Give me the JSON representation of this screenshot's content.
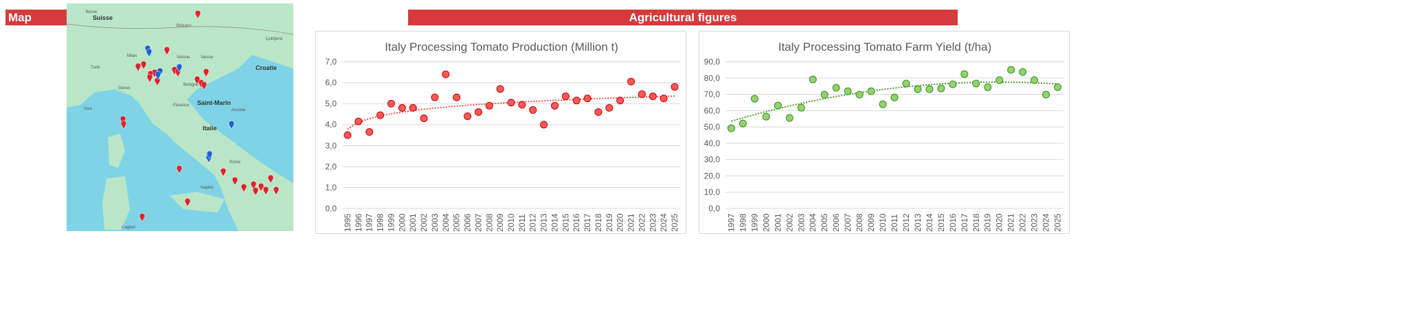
{
  "headers": {
    "map": "Map",
    "agri": "Agricultural figures"
  },
  "map": {
    "country_labels": [
      "Suisse",
      "Croatie",
      "Italie",
      "Saint-Marin"
    ],
    "city_labels": [
      "Berne",
      "Milan",
      "Turin",
      "Gênes",
      "Nice",
      "Vérone",
      "Venise",
      "Bologne",
      "Florence",
      "Rome",
      "Naples",
      "Bolzano",
      "Ljubljana",
      "Ancône",
      "Cagliari"
    ],
    "marker_colors": {
      "red": "#d9252f",
      "blue": "#1f5fd6"
    }
  },
  "chart_data": [
    {
      "type": "scatter",
      "title": "Italy Processing Tomato Production (Million t)",
      "x": [
        1995,
        1996,
        1997,
        1998,
        1999,
        2000,
        2001,
        2002,
        2003,
        2004,
        2005,
        2006,
        2007,
        2008,
        2009,
        2010,
        2011,
        2012,
        2013,
        2014,
        2015,
        2016,
        2017,
        2018,
        2019,
        2020,
        2021,
        2022,
        2023,
        2024,
        2025
      ],
      "y": [
        3.5,
        4.15,
        3.65,
        4.45,
        5.0,
        4.8,
        4.8,
        4.3,
        5.3,
        6.4,
        5.3,
        4.4,
        4.6,
        4.9,
        5.7,
        5.05,
        4.95,
        4.7,
        4.0,
        4.9,
        5.35,
        5.15,
        5.25,
        4.6,
        4.8,
        5.15,
        6.05,
        5.45,
        5.35,
        5.25,
        5.8
      ],
      "ylim": [
        0,
        7
      ],
      "yticks": [
        "0,0",
        "1,0",
        "2,0",
        "3,0",
        "4,0",
        "5,0",
        "6,0",
        "7,0"
      ],
      "trendline": "logarithmic",
      "grid": true,
      "color": "#ff5a5a",
      "edge": "#c00000"
    },
    {
      "type": "scatter",
      "title": "Italy Processing Tomato Farm Yield (t/ha)",
      "x": [
        1997,
        1998,
        1999,
        2000,
        2001,
        2002,
        2003,
        2004,
        2005,
        2006,
        2007,
        2008,
        2009,
        2010,
        2011,
        2012,
        2013,
        2014,
        2015,
        2016,
        2017,
        2018,
        2019,
        2020,
        2021,
        2022,
        2023,
        2024,
        2025
      ],
      "y": [
        49.2,
        52.1,
        67.3,
        56.3,
        63.1,
        55.5,
        61.8,
        79.1,
        69.8,
        74.0,
        71.9,
        69.8,
        71.9,
        63.9,
        68.1,
        76.6,
        73.2,
        73.2,
        73.6,
        76.1,
        82.4,
        76.6,
        74.4,
        78.7,
        85.0,
        83.7,
        78.7,
        69.8,
        74.4
      ],
      "ylim": [
        0,
        90
      ],
      "yticks": [
        "0,0",
        "10,0",
        "20,0",
        "30,0",
        "40,0",
        "50,0",
        "60,0",
        "70,0",
        "80,0",
        "90,0"
      ],
      "trendline": "polynomial",
      "grid": true,
      "color": "#92d36e",
      "edge": "#3a8a1e"
    }
  ]
}
